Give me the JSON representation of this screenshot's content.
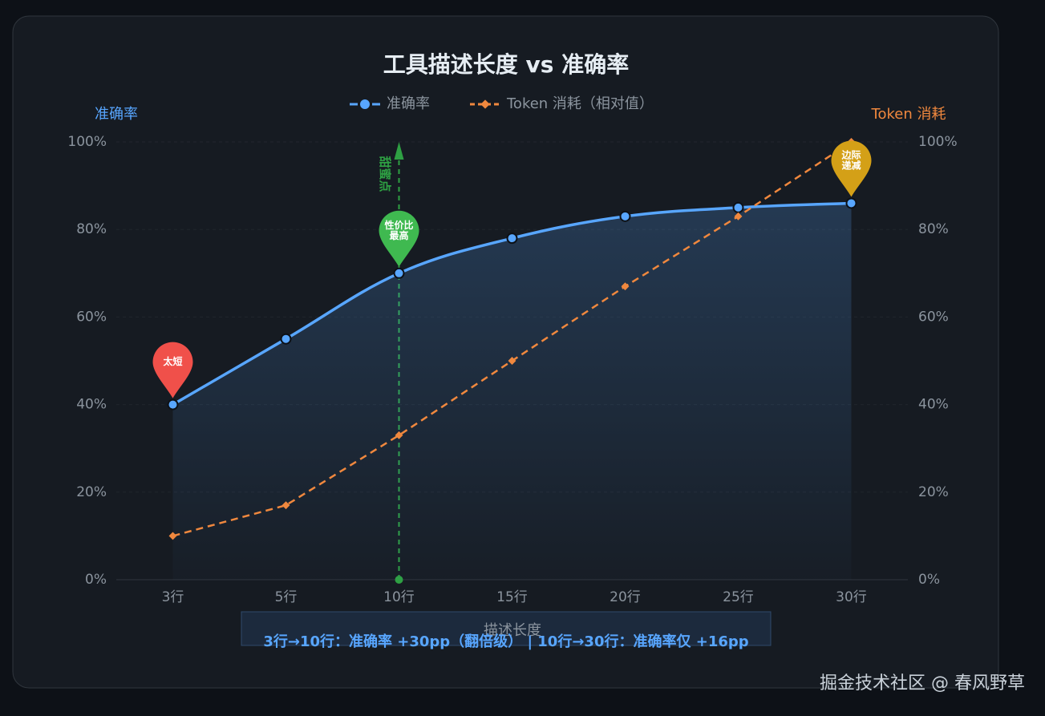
{
  "chart_data": {
    "type": "line",
    "title": "工具描述长度 vs 准确率",
    "x_label": "描述长度",
    "y_label": "准确率",
    "y2_label": "Token 消耗",
    "categories": [
      "3行",
      "5行",
      "10行",
      "15行",
      "20行",
      "25行",
      "30行"
    ],
    "series": [
      {
        "name": "准确率",
        "color": "#58a6ff",
        "values": [
          40,
          55,
          70,
          78,
          83,
          85,
          86
        ]
      },
      {
        "name": "Token 消耗（相对值）",
        "color": "#f0883e",
        "axis": "y2",
        "values": [
          10,
          17,
          33,
          50,
          67,
          83,
          100
        ]
      }
    ],
    "ylim": [
      0,
      100
    ],
    "yticks": [
      {
        "value": 0,
        "label": "0%"
      },
      {
        "value": 20,
        "label": "20%"
      },
      {
        "value": 40,
        "label": "40%"
      },
      {
        "value": 60,
        "label": "60%"
      },
      {
        "value": 80,
        "label": "80%"
      },
      {
        "value": 100,
        "label": "100%"
      }
    ],
    "y2lim": [
      0,
      100
    ],
    "y2ticks": [
      {
        "value": 0,
        "label": "0%"
      },
      {
        "value": 20,
        "label": "20%"
      },
      {
        "value": 40,
        "label": "40%"
      },
      {
        "value": 60,
        "label": "60%"
      },
      {
        "value": 80,
        "label": "80%"
      },
      {
        "value": 100,
        "label": "100%"
      }
    ],
    "grid": true,
    "mark_line_label": "甜蜜点",
    "annotations": [
      {
        "lines": [
          "太短"
        ],
        "color": "#f0504a"
      },
      {
        "lines": [
          "性价比",
          "最高"
        ],
        "color": "#3fb950"
      },
      {
        "lines": [
          "边际",
          "递减"
        ],
        "color": "#d4a017"
      }
    ],
    "note": "3行→10行：准确率 +30pp（翻倍级） | 10行→30行：准确率仅 +16pp"
  },
  "watermark": "掘金技术社区 @ 春风野草"
}
